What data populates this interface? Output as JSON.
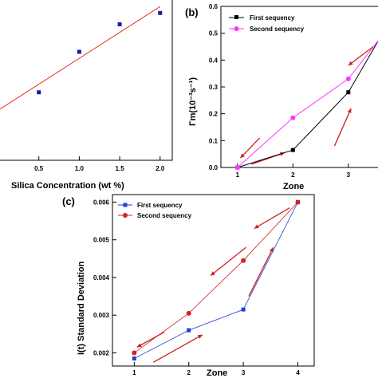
{
  "colors": {
    "first": "#1f3fd1",
    "second": "#d42020",
    "first_b": "#000000",
    "second_b": "#ff33ff",
    "fit": "#e8281e",
    "point_a": "#1a1aa6",
    "arrow": "#cc2222"
  },
  "chart_data": [
    {
      "panel": "a",
      "type": "scatter",
      "xlabel": "Silica Concentration (wt %)",
      "ylabel": "",
      "xlim": [
        0,
        2.15
      ],
      "ylim": [
        0,
        1
      ],
      "xticks": [
        "0.5",
        "1.0",
        "1.5",
        "2.0"
      ],
      "points": [
        {
          "x": 0.5,
          "y": 0.42
        },
        {
          "x": 1.0,
          "y": 0.67
        },
        {
          "x": 1.5,
          "y": 0.84
        },
        {
          "x": 2.0,
          "y": 0.91
        }
      ],
      "fit_line": {
        "x": [
          0,
          2.0
        ],
        "y": [
          0.31,
          0.95
        ]
      }
    },
    {
      "panel": "b",
      "panel_label": "(b)",
      "type": "line",
      "xlabel": "Zone",
      "ylabel": "Γm(10⁻³s⁻¹)",
      "xlim": [
        0.7,
        3.55
      ],
      "ylim": [
        0,
        0.6
      ],
      "xticks": [
        "1",
        "2",
        "3"
      ],
      "yticks": [
        "0.0",
        "0.1",
        "0.2",
        "0.3",
        "0.4",
        "0.5",
        "0.6"
      ],
      "legend_position": "top-left",
      "series": [
        {
          "name": "First sequency",
          "x": [
            1,
            2,
            3,
            3.55
          ],
          "y": [
            0.0,
            0.065,
            0.28,
            0.475
          ]
        },
        {
          "name": "Second sequency",
          "x": [
            1,
            2,
            3,
            3.55
          ],
          "y": [
            0.0,
            0.185,
            0.33,
            0.475
          ]
        }
      ]
    },
    {
      "panel": "c",
      "panel_label": "(c)",
      "type": "line",
      "xlabel": "Zone",
      "ylabel": "I(t) Standard Deviation",
      "xlim": [
        0.6,
        4.3
      ],
      "ylim": [
        0.00165,
        0.0062
      ],
      "xticks": [
        "1",
        "2",
        "3",
        "4"
      ],
      "yticks": [
        "0.002",
        "0.003",
        "0.004",
        "0.005",
        "0.006"
      ],
      "legend_position": "top-left",
      "series": [
        {
          "name": "First sequency",
          "x": [
            1,
            2,
            3,
            4
          ],
          "y": [
            0.00185,
            0.0026,
            0.00315,
            0.006
          ]
        },
        {
          "name": "Second sequency",
          "x": [
            1,
            2,
            3,
            4
          ],
          "y": [
            0.002,
            0.00305,
            0.00445,
            0.006
          ]
        }
      ]
    }
  ]
}
